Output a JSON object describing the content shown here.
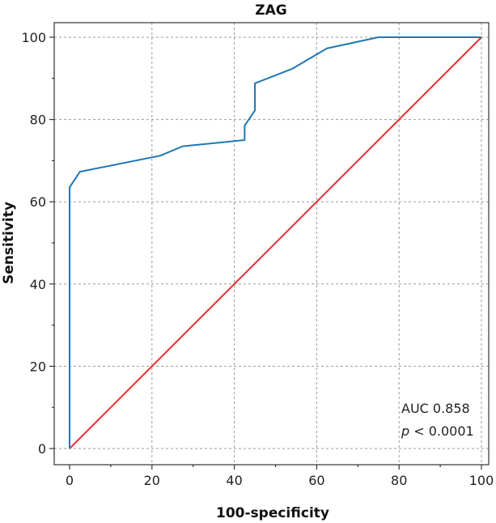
{
  "chart_data": {
    "type": "line",
    "title": "ZAG",
    "xlabel": "100-specificity",
    "ylabel": "Sensitivity",
    "xlim": [
      0,
      100
    ],
    "ylim": [
      0,
      100
    ],
    "xticks": [
      0,
      20,
      40,
      60,
      80,
      100
    ],
    "yticks": [
      0,
      20,
      40,
      60,
      80,
      100
    ],
    "grid": true,
    "series": [
      {
        "color": "#1f77b4",
        "x": [
          0,
          0,
          2.5,
          22,
          27.5,
          42.5,
          42.5,
          45,
          45,
          54,
          62.5,
          75,
          100
        ],
        "y": [
          0,
          63.5,
          67.3,
          71.2,
          73.5,
          75,
          78.5,
          82.2,
          88.8,
          92.3,
          97.3,
          100,
          100
        ]
      },
      {
        "color": "#e8312f",
        "x": [
          0,
          100
        ],
        "y": [
          0,
          100
        ]
      }
    ],
    "annotations": {
      "auc": "AUC 0.858",
      "p_italic": "p",
      "p_rest": " < 0.0001"
    }
  }
}
